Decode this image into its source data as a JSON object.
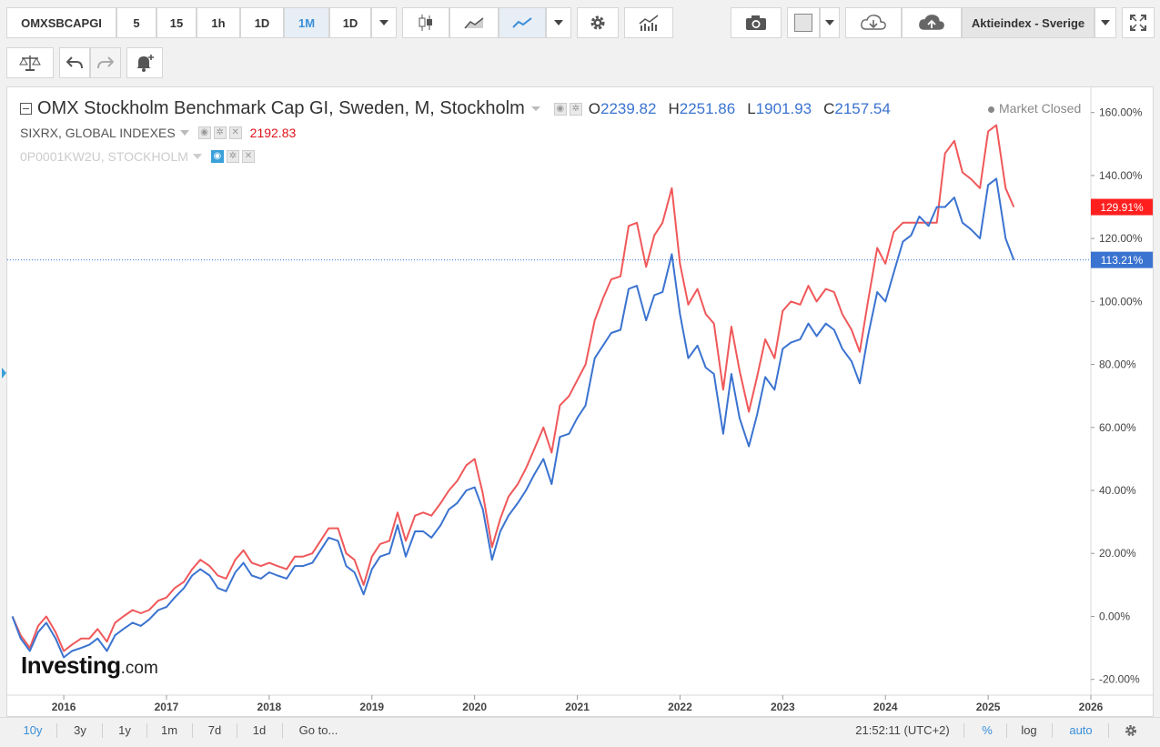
{
  "toolbar": {
    "symbol": "OMXSBCAPGI",
    "intervals": [
      "5",
      "15",
      "1h",
      "1D",
      "1M",
      "1D"
    ],
    "active_interval": "1M",
    "index_select": "Aktieindex - Sverige"
  },
  "header": {
    "title": "OMX Stockholm Benchmark Cap GI, Sweden, M, Stockholm",
    "market_status": "Market Closed",
    "ohlc": {
      "o_label": "O",
      "o_value": "2239.82",
      "h_label": "H",
      "h_value": "2251.86",
      "l_label": "L",
      "l_value": "1901.93",
      "c_label": "C",
      "c_value": "2157.54"
    },
    "compare1": {
      "label": "SIXRX, GLOBAL INDEXES",
      "value": "2192.83"
    },
    "compare2": {
      "label": "0P0001KW2U, STOCKHOLM"
    }
  },
  "watermark": {
    "brand": "Investing",
    "suffix": ".com"
  },
  "bottombar": {
    "ranges": [
      "10y",
      "3y",
      "1y",
      "1m",
      "7d",
      "1d"
    ],
    "active_range": "10y",
    "goto": "Go to...",
    "clock": "21:52:11 (UTC+2)",
    "pct": "%",
    "log": "log",
    "auto": "auto"
  },
  "colors": {
    "red": "#f0585a",
    "blue": "#3b73d0",
    "accent": "#3a8fd9"
  },
  "chart_data": {
    "type": "line",
    "x_unit": "year (decimal)",
    "xlim": [
      2015.45,
      2026.0
    ],
    "ylim": [
      -25,
      168
    ],
    "yticks": [
      -20,
      0,
      20,
      40,
      60,
      80,
      100,
      120,
      140,
      160
    ],
    "ytick_labels": [
      "-20.00%",
      "0.00%",
      "20.00%",
      "40.00%",
      "60.00%",
      "80.00%",
      "100.00%",
      "120.00%",
      "140.00%",
      "160.00%"
    ],
    "xticks": [
      2016,
      2017,
      2018,
      2019,
      2020,
      2021,
      2022,
      2023,
      2024,
      2025,
      2026
    ],
    "xtick_labels": [
      "2016",
      "2017",
      "2018",
      "2019",
      "2020",
      "2021",
      "2022",
      "2023",
      "2024",
      "2025",
      "2026"
    ],
    "last_labels": [
      {
        "series": "red",
        "text": "129.91%"
      },
      {
        "series": "blue",
        "text": "113.21%"
      }
    ],
    "series": [
      {
        "color": "#f0585a",
        "points": [
          [
            2015.5,
            0
          ],
          [
            2015.58,
            -6
          ],
          [
            2015.67,
            -10
          ],
          [
            2015.75,
            -3
          ],
          [
            2015.83,
            0
          ],
          [
            2015.92,
            -5
          ],
          [
            2016.0,
            -11
          ],
          [
            2016.08,
            -9
          ],
          [
            2016.17,
            -7
          ],
          [
            2016.25,
            -7
          ],
          [
            2016.33,
            -4
          ],
          [
            2016.42,
            -8
          ],
          [
            2016.5,
            -2
          ],
          [
            2016.58,
            0
          ],
          [
            2016.67,
            2
          ],
          [
            2016.75,
            1
          ],
          [
            2016.83,
            2
          ],
          [
            2016.92,
            5
          ],
          [
            2017.0,
            6
          ],
          [
            2017.08,
            9
          ],
          [
            2017.17,
            11
          ],
          [
            2017.25,
            15
          ],
          [
            2017.33,
            18
          ],
          [
            2017.42,
            16
          ],
          [
            2017.5,
            13
          ],
          [
            2017.58,
            12
          ],
          [
            2017.67,
            18
          ],
          [
            2017.75,
            21
          ],
          [
            2017.83,
            17
          ],
          [
            2017.92,
            16
          ],
          [
            2018.0,
            17
          ],
          [
            2018.08,
            16
          ],
          [
            2018.17,
            15
          ],
          [
            2018.25,
            19
          ],
          [
            2018.33,
            19
          ],
          [
            2018.42,
            20
          ],
          [
            2018.5,
            24
          ],
          [
            2018.58,
            28
          ],
          [
            2018.67,
            28
          ],
          [
            2018.75,
            20
          ],
          [
            2018.83,
            18
          ],
          [
            2018.92,
            10
          ],
          [
            2019.0,
            19
          ],
          [
            2019.08,
            23
          ],
          [
            2019.17,
            24
          ],
          [
            2019.25,
            33
          ],
          [
            2019.33,
            24
          ],
          [
            2019.42,
            32
          ],
          [
            2019.5,
            33
          ],
          [
            2019.58,
            32
          ],
          [
            2019.67,
            36
          ],
          [
            2019.75,
            40
          ],
          [
            2019.83,
            43
          ],
          [
            2019.92,
            48
          ],
          [
            2020.0,
            50
          ],
          [
            2020.08,
            39
          ],
          [
            2020.17,
            22
          ],
          [
            2020.25,
            31
          ],
          [
            2020.33,
            38
          ],
          [
            2020.42,
            42
          ],
          [
            2020.5,
            47
          ],
          [
            2020.58,
            53
          ],
          [
            2020.67,
            60
          ],
          [
            2020.75,
            52
          ],
          [
            2020.83,
            67
          ],
          [
            2020.92,
            70
          ],
          [
            2021.0,
            75
          ],
          [
            2021.08,
            80
          ],
          [
            2021.17,
            94
          ],
          [
            2021.25,
            101
          ],
          [
            2021.33,
            107
          ],
          [
            2021.42,
            108
          ],
          [
            2021.5,
            124
          ],
          [
            2021.58,
            125
          ],
          [
            2021.67,
            111
          ],
          [
            2021.75,
            121
          ],
          [
            2021.83,
            125
          ],
          [
            2021.92,
            136
          ],
          [
            2022.0,
            112
          ],
          [
            2022.08,
            99
          ],
          [
            2022.17,
            104
          ],
          [
            2022.25,
            96
          ],
          [
            2022.33,
            93
          ],
          [
            2022.42,
            72
          ],
          [
            2022.5,
            92
          ],
          [
            2022.58,
            78
          ],
          [
            2022.67,
            65
          ],
          [
            2022.75,
            76
          ],
          [
            2022.83,
            88
          ],
          [
            2022.92,
            82
          ],
          [
            2023.0,
            97
          ],
          [
            2023.08,
            100
          ],
          [
            2023.17,
            99
          ],
          [
            2023.25,
            105
          ],
          [
            2023.33,
            100
          ],
          [
            2023.42,
            104
          ],
          [
            2023.5,
            103
          ],
          [
            2023.58,
            96
          ],
          [
            2023.67,
            91
          ],
          [
            2023.75,
            84
          ],
          [
            2023.83,
            100
          ],
          [
            2023.92,
            117
          ],
          [
            2024.0,
            112
          ],
          [
            2024.08,
            122
          ],
          [
            2024.17,
            125
          ],
          [
            2024.25,
            125
          ],
          [
            2024.33,
            125
          ],
          [
            2024.42,
            125
          ],
          [
            2024.5,
            125
          ],
          [
            2024.58,
            147
          ],
          [
            2024.67,
            151
          ],
          [
            2024.75,
            141
          ],
          [
            2024.83,
            139
          ],
          [
            2024.92,
            136
          ],
          [
            2025.0,
            154
          ],
          [
            2025.08,
            156
          ],
          [
            2025.17,
            136
          ],
          [
            2025.25,
            130
          ]
        ]
      },
      {
        "color": "#3b73d0",
        "points": [
          [
            2015.5,
            0
          ],
          [
            2015.58,
            -7
          ],
          [
            2015.67,
            -11
          ],
          [
            2015.75,
            -5
          ],
          [
            2015.83,
            -2
          ],
          [
            2015.92,
            -7
          ],
          [
            2016.0,
            -13
          ],
          [
            2016.08,
            -11
          ],
          [
            2016.17,
            -10
          ],
          [
            2016.25,
            -9
          ],
          [
            2016.33,
            -7
          ],
          [
            2016.42,
            -11
          ],
          [
            2016.5,
            -6
          ],
          [
            2016.58,
            -4
          ],
          [
            2016.67,
            -2
          ],
          [
            2016.75,
            -3
          ],
          [
            2016.83,
            -1
          ],
          [
            2016.92,
            2
          ],
          [
            2017.0,
            3
          ],
          [
            2017.08,
            6
          ],
          [
            2017.17,
            9
          ],
          [
            2017.25,
            13
          ],
          [
            2017.33,
            15
          ],
          [
            2017.42,
            13
          ],
          [
            2017.5,
            9
          ],
          [
            2017.58,
            8
          ],
          [
            2017.67,
            14
          ],
          [
            2017.75,
            17
          ],
          [
            2017.83,
            13
          ],
          [
            2017.92,
            12
          ],
          [
            2018.0,
            14
          ],
          [
            2018.08,
            13
          ],
          [
            2018.17,
            12
          ],
          [
            2018.25,
            16
          ],
          [
            2018.33,
            16
          ],
          [
            2018.42,
            17
          ],
          [
            2018.5,
            21
          ],
          [
            2018.58,
            25
          ],
          [
            2018.67,
            24
          ],
          [
            2018.75,
            16
          ],
          [
            2018.83,
            14
          ],
          [
            2018.92,
            7
          ],
          [
            2019.0,
            15
          ],
          [
            2019.08,
            19
          ],
          [
            2019.17,
            20
          ],
          [
            2019.25,
            29
          ],
          [
            2019.33,
            19
          ],
          [
            2019.42,
            27
          ],
          [
            2019.5,
            27
          ],
          [
            2019.58,
            25
          ],
          [
            2019.67,
            29
          ],
          [
            2019.75,
            34
          ],
          [
            2019.83,
            36
          ],
          [
            2019.92,
            40
          ],
          [
            2020.0,
            41
          ],
          [
            2020.08,
            34
          ],
          [
            2020.17,
            18
          ],
          [
            2020.25,
            27
          ],
          [
            2020.33,
            32
          ],
          [
            2020.42,
            36
          ],
          [
            2020.5,
            40
          ],
          [
            2020.58,
            45
          ],
          [
            2020.67,
            50
          ],
          [
            2020.75,
            42
          ],
          [
            2020.83,
            57
          ],
          [
            2020.92,
            58
          ],
          [
            2021.0,
            63
          ],
          [
            2021.08,
            67
          ],
          [
            2021.17,
            82
          ],
          [
            2021.25,
            86
          ],
          [
            2021.33,
            90
          ],
          [
            2021.42,
            91
          ],
          [
            2021.5,
            104
          ],
          [
            2021.58,
            105
          ],
          [
            2021.67,
            94
          ],
          [
            2021.75,
            102
          ],
          [
            2021.83,
            103
          ],
          [
            2021.92,
            115
          ],
          [
            2022.0,
            96
          ],
          [
            2022.08,
            82
          ],
          [
            2022.17,
            86
          ],
          [
            2022.25,
            79
          ],
          [
            2022.33,
            77
          ],
          [
            2022.42,
            58
          ],
          [
            2022.5,
            77
          ],
          [
            2022.58,
            63
          ],
          [
            2022.67,
            54
          ],
          [
            2022.75,
            64
          ],
          [
            2022.83,
            76
          ],
          [
            2022.92,
            72
          ],
          [
            2023.0,
            85
          ],
          [
            2023.08,
            87
          ],
          [
            2023.17,
            88
          ],
          [
            2023.25,
            93
          ],
          [
            2023.33,
            89
          ],
          [
            2023.42,
            93
          ],
          [
            2023.5,
            91
          ],
          [
            2023.58,
            85
          ],
          [
            2023.67,
            81
          ],
          [
            2023.75,
            74
          ],
          [
            2023.83,
            89
          ],
          [
            2023.92,
            103
          ],
          [
            2024.0,
            100
          ],
          [
            2024.08,
            109
          ],
          [
            2024.17,
            119
          ],
          [
            2024.25,
            121
          ],
          [
            2024.33,
            127
          ],
          [
            2024.42,
            124
          ],
          [
            2024.5,
            130
          ],
          [
            2024.58,
            130
          ],
          [
            2024.67,
            133
          ],
          [
            2024.75,
            125
          ],
          [
            2024.83,
            123
          ],
          [
            2024.92,
            120
          ],
          [
            2025.0,
            137
          ],
          [
            2025.08,
            139
          ],
          [
            2025.17,
            120
          ],
          [
            2025.25,
            113.21
          ]
        ]
      }
    ]
  }
}
